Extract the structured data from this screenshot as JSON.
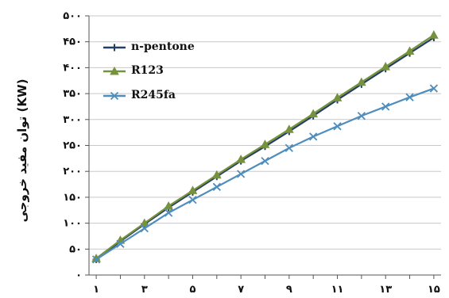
{
  "chart_data": {
    "type": "line",
    "title": "",
    "ylabel": "توان مفید خروجی (KW)",
    "xlabel": "",
    "x": [
      1,
      2,
      3,
      4,
      5,
      6,
      7,
      8,
      9,
      10,
      11,
      12,
      13,
      14,
      15
    ],
    "x_tick_labels": [
      "۱",
      "۳",
      "۵",
      "۷",
      "۹",
      "۱۱",
      "۱۳",
      "۱۵"
    ],
    "x_tick_values": [
      1,
      3,
      5,
      7,
      9,
      11,
      13,
      15
    ],
    "y_tick_labels": [
      "۰",
      "۵۰",
      "۱۰۰",
      "۱۵۰",
      "۲۰۰",
      "۲۵۰",
      "۳۰۰",
      "۳۵۰",
      "۴۰۰",
      "۴۵۰",
      "۵۰۰"
    ],
    "y_tick_values": [
      0,
      50,
      100,
      150,
      200,
      250,
      300,
      350,
      400,
      450,
      500
    ],
    "ylim": [
      0,
      500
    ],
    "xlim": [
      0.7,
      15.3
    ],
    "grid": "horizontal",
    "legend_position": "top-left",
    "series": [
      {
        "name": "n-pentone",
        "color": "#243f60",
        "marker": "plus",
        "values": [
          30,
          65,
          98,
          130,
          160,
          190,
          220,
          248,
          277,
          307,
          338,
          368,
          398,
          428,
          458
        ]
      },
      {
        "name": "R123",
        "color": "#76923c",
        "marker": "triangle",
        "values": [
          32,
          67,
          100,
          133,
          163,
          193,
          223,
          252,
          281,
          311,
          342,
          372,
          402,
          432,
          463
        ]
      },
      {
        "name": "R245fa",
        "color": "#4f8ebc",
        "marker": "x",
        "values": [
          30,
          60,
          90,
          120,
          145,
          170,
          195,
          220,
          245,
          267,
          287,
          307,
          325,
          343,
          360
        ]
      }
    ]
  }
}
